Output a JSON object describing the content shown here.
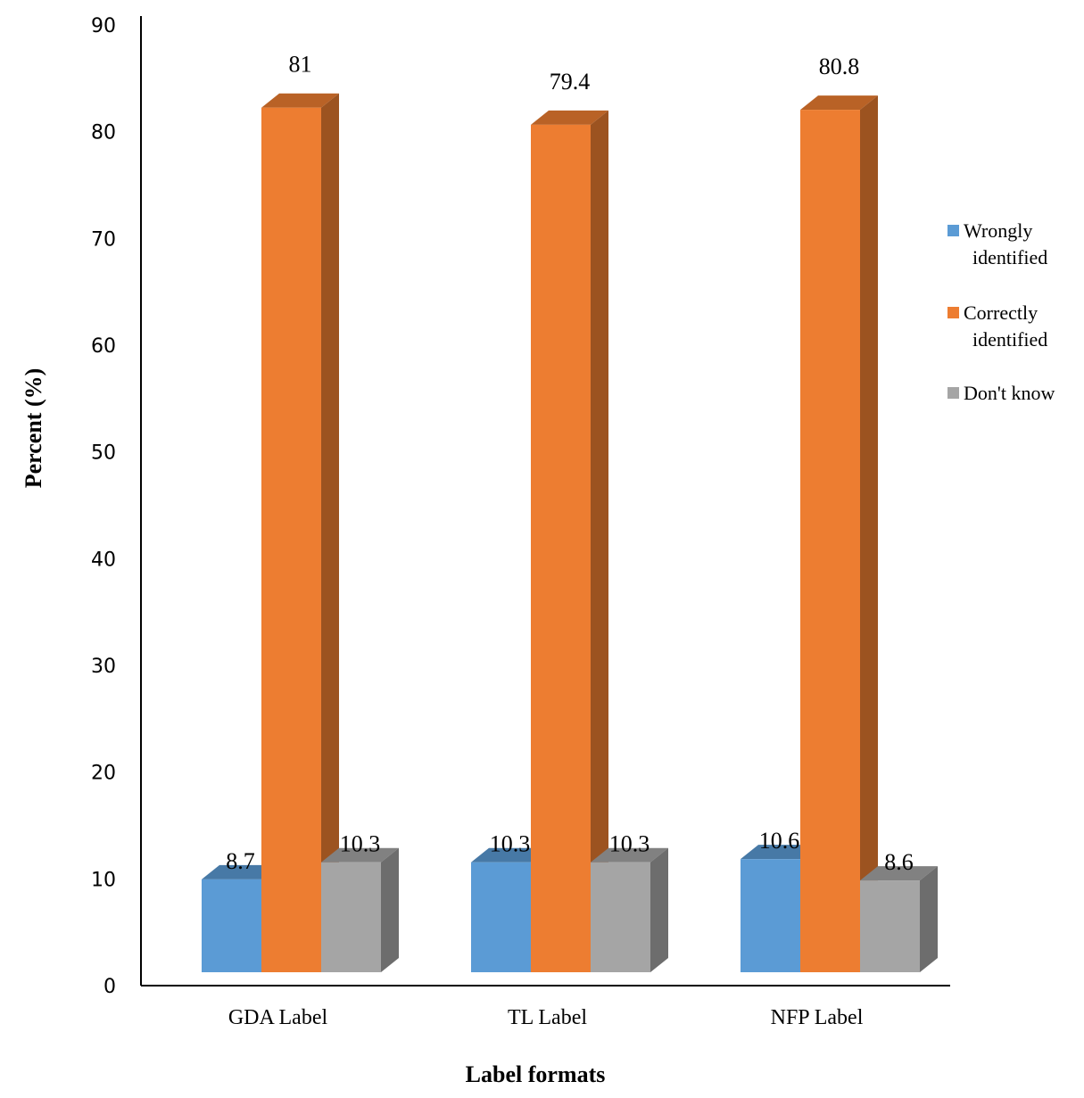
{
  "chart_data": {
    "type": "bar",
    "style": "3d-clustered-column",
    "categories": [
      "GDA Label",
      "TL Label",
      "NFP Label"
    ],
    "series": [
      {
        "name": "Wrongly identified",
        "values": [
          8.7,
          10.3,
          10.6
        ],
        "color": "#5B9BD5"
      },
      {
        "name": "Correctly identified",
        "values": [
          81,
          79.4,
          80.8
        ],
        "color": "#ED7D31"
      },
      {
        "name": "Don't know",
        "values": [
          10.3,
          10.3,
          8.6
        ],
        "color": "#A5A5A5"
      }
    ],
    "xlabel": "Label formats",
    "ylabel": "Percent (%)",
    "ylim": [
      0,
      90
    ],
    "yticks": [
      0,
      10,
      20,
      30,
      40,
      50,
      60,
      70,
      80,
      90
    ],
    "legend_position": "right",
    "data_labels": true,
    "grid": false
  }
}
